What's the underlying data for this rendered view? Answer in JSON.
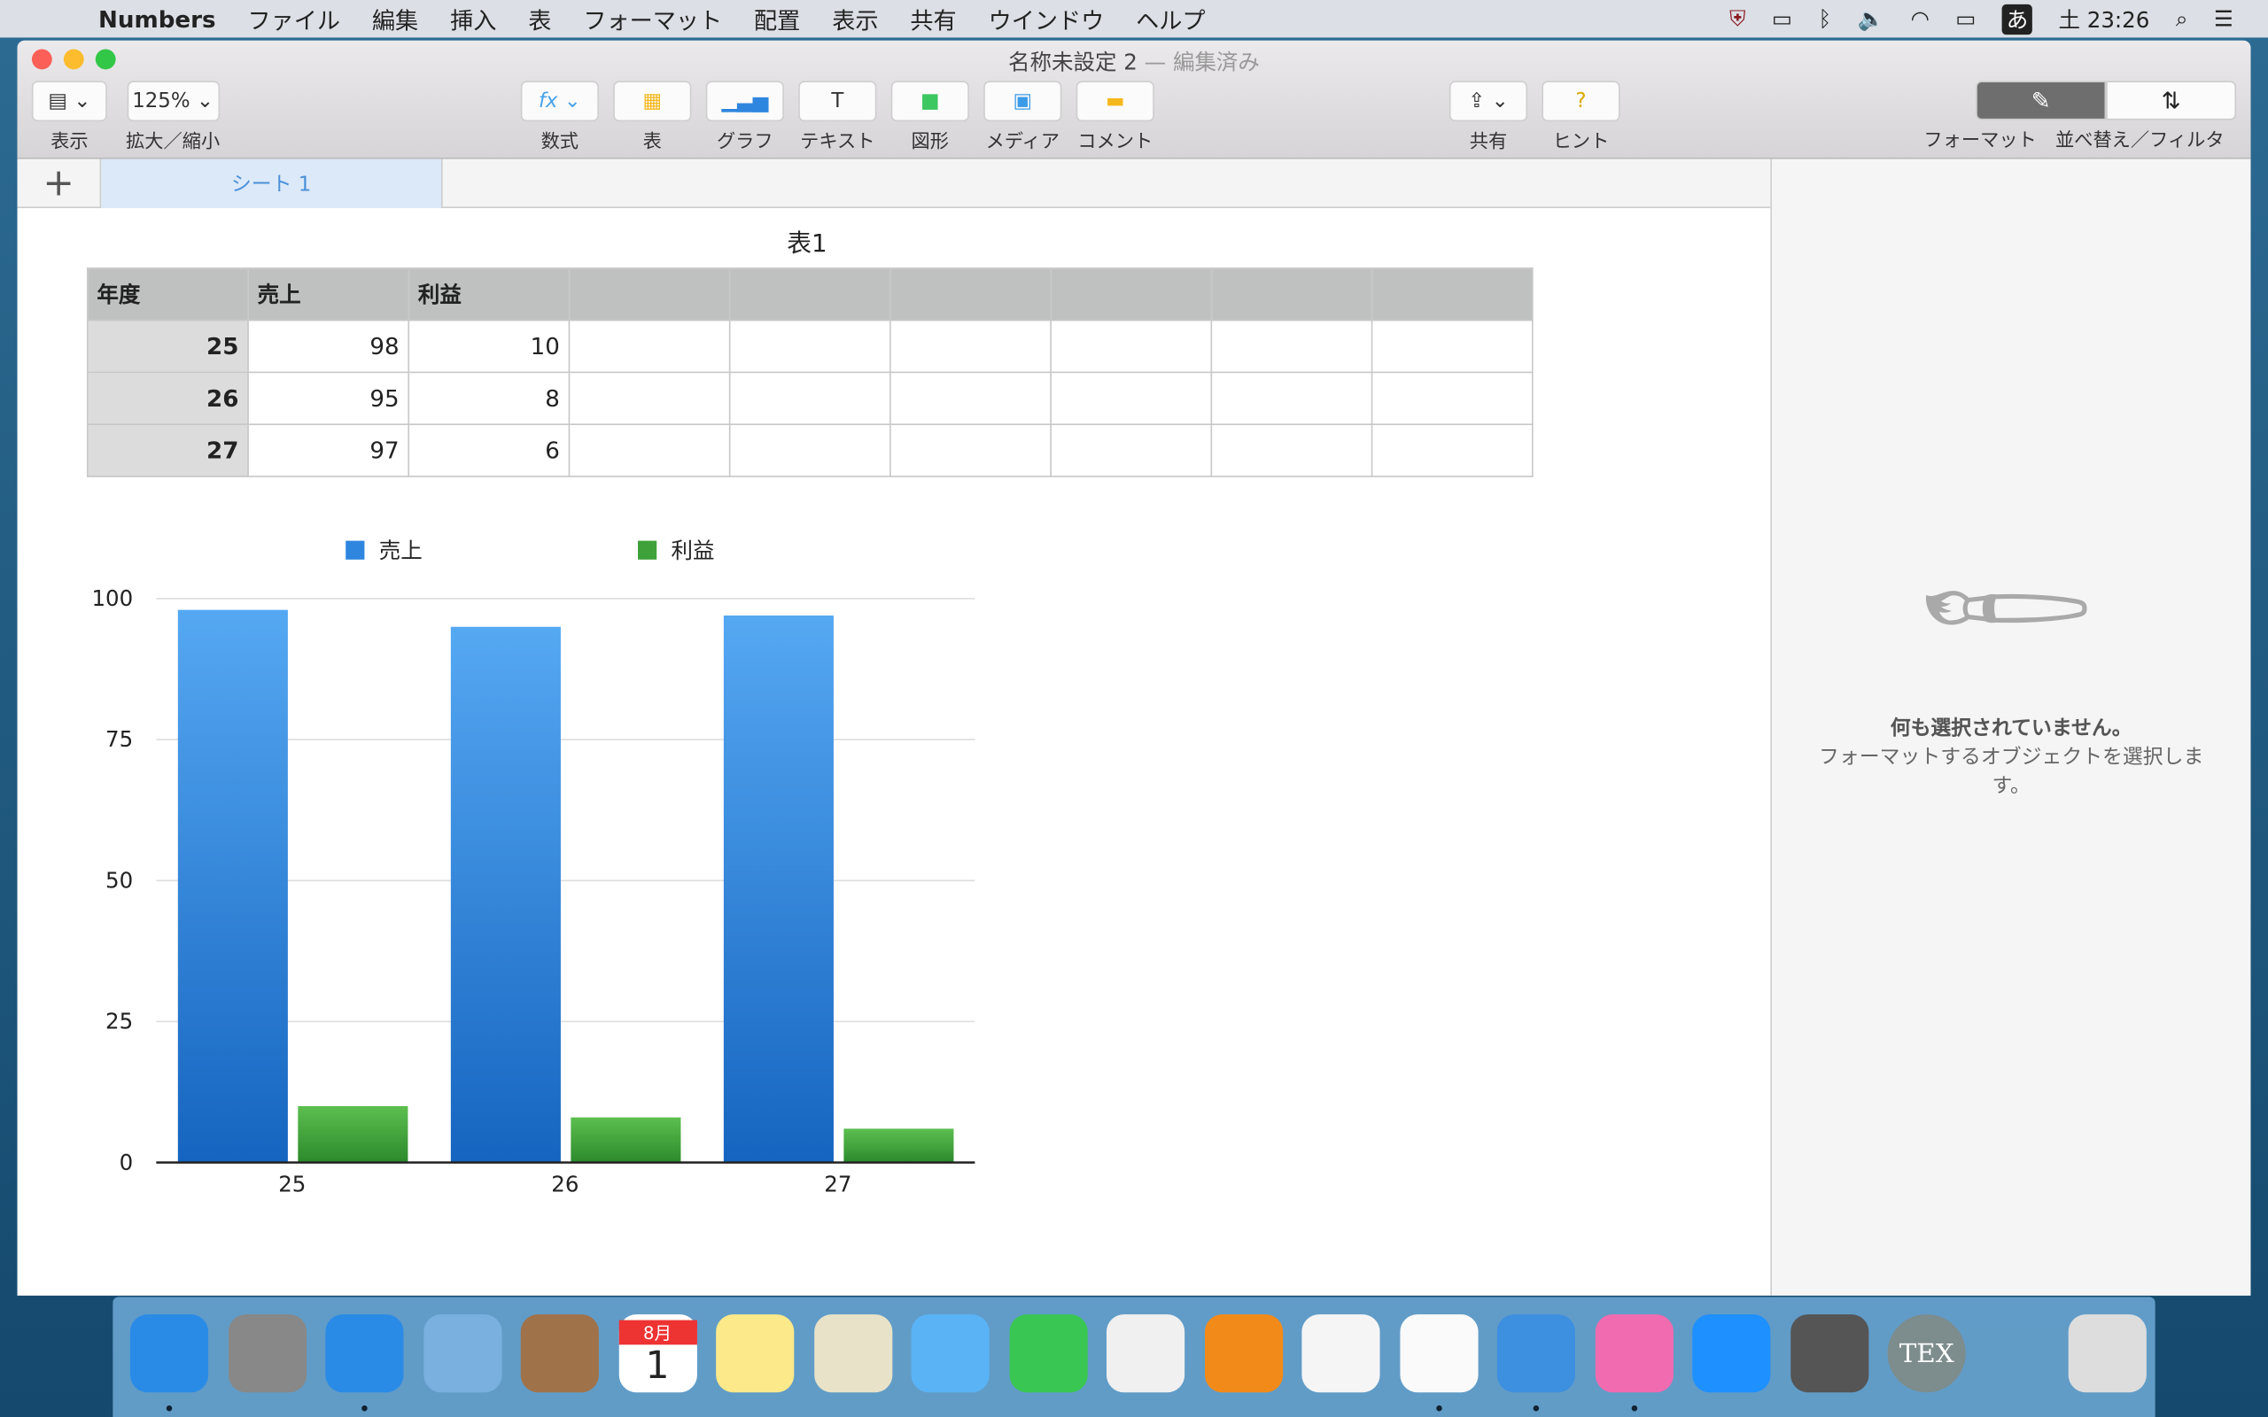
{
  "menubar": {
    "app": "Numbers",
    "items": [
      "ファイル",
      "編集",
      "挿入",
      "表",
      "フォーマット",
      "配置",
      "表示",
      "共有",
      "ウインドウ",
      "ヘルプ"
    ],
    "clock": "土 23:26",
    "ime": "あ"
  },
  "window": {
    "title": "名称未設定 2",
    "edited": "— 編集済み"
  },
  "toolbar": {
    "view": "表示",
    "zoom_value": "125%",
    "zoom": "拡大／縮小",
    "formula": "数式",
    "table": "表",
    "chart": "グラフ",
    "text": "テキスト",
    "shape": "図形",
    "media": "メディア",
    "comment": "コメント",
    "share": "共有",
    "hint": "ヒント",
    "format": "フォーマット",
    "sort": "並べ替え／フィルタ"
  },
  "sheets": {
    "add": "+",
    "tabs": [
      "シート 1"
    ]
  },
  "table": {
    "title": "表1",
    "headers": [
      "年度",
      "売上",
      "利益"
    ],
    "rows": [
      [
        "25",
        "98",
        "10"
      ],
      [
        "26",
        "95",
        "8"
      ],
      [
        "27",
        "97",
        "6"
      ]
    ]
  },
  "chart_data": {
    "type": "bar",
    "categories": [
      "25",
      "26",
      "27"
    ],
    "series": [
      {
        "name": "売上",
        "values": [
          98,
          95,
          97
        ],
        "color": "#2f86df"
      },
      {
        "name": "利益",
        "values": [
          10,
          8,
          6
        ],
        "color": "#3ea13a"
      }
    ],
    "ylim": [
      0,
      100
    ],
    "yticks": [
      "0",
      "25",
      "50",
      "75",
      "100"
    ],
    "grid": true,
    "legend": "top"
  },
  "sidebar": {
    "empty_title": "何も選択されていません。",
    "empty_desc": "フォーマットするオブジェクトを選択します。"
  },
  "dock": {
    "apps": [
      "Finder",
      "Launchpad",
      "Safari",
      "Mail",
      "連絡先",
      "カレンダー",
      "メモ",
      "マップ",
      "メッセージ",
      "FaceTime",
      "写真",
      "iBooks",
      "Pages",
      "Numbers",
      "Keynote",
      "iTunes",
      "App Store",
      "システム環境設定",
      "TeX",
      "ゴミ箱"
    ],
    "calendar_month": "8月",
    "calendar_day": "1"
  }
}
